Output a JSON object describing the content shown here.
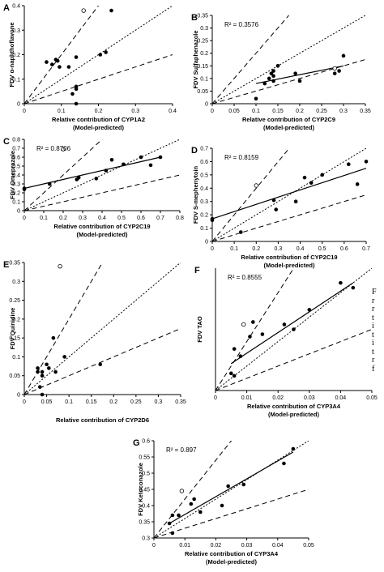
{
  "side_text": [
    "F",
    "r",
    "r",
    "t",
    "i",
    "t",
    "i",
    "t",
    "r",
    "f"
  ],
  "chart_data": [
    {
      "type": "scatter",
      "panel": "A",
      "ylabel": "FDV α-naphthoflavone",
      "xlabel": "Relative contribution of CYP1A2",
      "xlabel2": "(Model-predicted)",
      "xlim": [
        0,
        0.4
      ],
      "ylim": [
        0,
        0.4
      ],
      "xticks": [
        "0",
        "0.1",
        "0.2",
        "0.3",
        "0.4"
      ],
      "yticks": [
        "0",
        "0.1",
        "0.2",
        "0.3",
        "0.4"
      ],
      "r2": "",
      "points": [
        [
          0.06,
          0.17
        ],
        [
          0.075,
          0.16
        ],
        [
          0.085,
          0.18
        ],
        [
          0.09,
          0.175
        ],
        [
          0.095,
          0.15
        ],
        [
          0.12,
          0.15
        ],
        [
          0.13,
          0.04
        ],
        [
          0.14,
          0.06
        ],
        [
          0.14,
          0.07
        ],
        [
          0.14,
          0.19
        ],
        [
          0.205,
          0.2
        ],
        [
          0.22,
          0.21
        ],
        [
          0.235,
          0.38
        ],
        [
          0.14,
          0.0
        ]
      ],
      "open_points": [
        [
          0.16,
          0.38
        ]
      ],
      "fit": null
    },
    {
      "type": "scatter",
      "panel": "B",
      "ylabel": "FDV Sulfaphenazole",
      "xlabel": "Relative contribution of CYP2C9",
      "xlabel2": "(Model-predicted)",
      "xlim": [
        0,
        0.35
      ],
      "ylim": [
        0,
        0.35
      ],
      "xticks": [
        "0",
        "0.05",
        "0.1",
        "0.15",
        "0.2",
        "0.25",
        "0.3",
        "0.35"
      ],
      "yticks": [
        "0",
        "0.05",
        "0.1",
        "0.15",
        "0.2",
        "0.25",
        "0.3",
        "0.35"
      ],
      "r2": "R² = 0.3576",
      "points": [
        [
          0.1,
          0.02
        ],
        [
          0.12,
          0.08
        ],
        [
          0.13,
          0.1
        ],
        [
          0.135,
          0.12
        ],
        [
          0.14,
          0.09
        ],
        [
          0.14,
          0.11
        ],
        [
          0.14,
          0.13
        ],
        [
          0.15,
          0.15
        ],
        [
          0.19,
          0.12
        ],
        [
          0.2,
          0.09
        ],
        [
          0.28,
          0.12
        ],
        [
          0.3,
          0.19
        ],
        [
          0.29,
          0.13
        ]
      ],
      "open_points": [
        [
          0.28,
          0.14
        ]
      ],
      "fit": [
        [
          0.1,
          0.08
        ],
        [
          0.3,
          0.15
        ]
      ]
    },
    {
      "type": "scatter",
      "panel": "C",
      "ylabel": "FDV Omeprazole",
      "xlabel": "Relative contribution of CYP2C19",
      "xlabel2": "(Model-predicted)",
      "xlim": [
        0,
        0.8
      ],
      "ylim": [
        0,
        0.8
      ],
      "xticks": [
        "0",
        "0.1",
        "0.2",
        "0.3",
        "0.4",
        "0.5",
        "0.6",
        "0.7",
        "0.8"
      ],
      "yticks": [
        "0",
        "0.1",
        "0.2",
        "0.3",
        "0.4",
        "0.5",
        "0.6",
        "0.7",
        "0.8"
      ],
      "r2": "R² = 0.8706",
      "points": [
        [
          0.0,
          0.25
        ],
        [
          0.0,
          0.24
        ],
        [
          0.13,
          0.3
        ],
        [
          0.27,
          0.35
        ],
        [
          0.28,
          0.37
        ],
        [
          0.37,
          0.36
        ],
        [
          0.42,
          0.45
        ],
        [
          0.45,
          0.57
        ],
        [
          0.51,
          0.52
        ],
        [
          0.6,
          0.6
        ],
        [
          0.65,
          0.51
        ],
        [
          0.7,
          0.6
        ]
      ],
      "open_points": [
        [
          0.2,
          0.69
        ]
      ],
      "fit": [
        [
          0,
          0.25
        ],
        [
          0.7,
          0.6
        ]
      ]
    },
    {
      "type": "scatter",
      "panel": "D",
      "ylabel": "FDV S-mephenytoin",
      "xlabel": "Relative contribution of CYP2C19",
      "xlabel2": "(Model-predicted)",
      "xlim": [
        0,
        0.7
      ],
      "ylim": [
        0,
        0.7
      ],
      "xticks": [
        "0",
        "0.1",
        "0.2",
        "0.3",
        "0.4",
        "0.5",
        "0.6",
        "0.7"
      ],
      "yticks": [
        "0",
        "0.1",
        "0.2",
        "0.3",
        "0.4",
        "0.5",
        "0.6",
        "0.7"
      ],
      "r2": "R² = 0.8159",
      "points": [
        [
          0.0,
          0.16
        ],
        [
          0.0,
          0.17
        ],
        [
          0.13,
          0.07
        ],
        [
          0.28,
          0.31
        ],
        [
          0.29,
          0.24
        ],
        [
          0.38,
          0.3
        ],
        [
          0.42,
          0.48
        ],
        [
          0.45,
          0.44
        ],
        [
          0.5,
          0.5
        ],
        [
          0.62,
          0.58
        ],
        [
          0.66,
          0.43
        ],
        [
          0.7,
          0.6
        ]
      ],
      "open_points": [
        [
          0.2,
          0.42
        ]
      ],
      "fit": [
        [
          0,
          0.17
        ],
        [
          0.7,
          0.55
        ]
      ]
    },
    {
      "type": "scatter",
      "panel": "E",
      "ylabel": "FDV Quinidine",
      "xlabel": "Relative contribution of CYP2D6",
      "xlabel2": "",
      "xlim": [
        0,
        0.35
      ],
      "ylim": [
        0,
        0.35
      ],
      "xticks": [
        "0",
        "0.05",
        "0.1",
        "0.15",
        "0.2",
        "0.25",
        "0.3",
        "0.35"
      ],
      "yticks": [
        "0",
        "0.05",
        "0.1",
        "0.15",
        "0.2",
        "0.25",
        "0.3",
        "0.35"
      ],
      "r2": "",
      "points": [
        [
          0.03,
          0.06
        ],
        [
          0.03,
          0.07
        ],
        [
          0.035,
          0.02
        ],
        [
          0.04,
          0.05
        ],
        [
          0.04,
          0.06
        ],
        [
          0.05,
          0.08
        ],
        [
          0.055,
          0.07
        ],
        [
          0.065,
          0.15
        ],
        [
          0.07,
          0.06
        ],
        [
          0.09,
          0.1
        ],
        [
          0.17,
          0.08
        ],
        [
          0.04,
          0.0
        ]
      ],
      "open_points": [
        [
          0.08,
          0.34
        ]
      ],
      "fit": null
    },
    {
      "type": "scatter",
      "panel": "F",
      "ylabel": "FDV TAO",
      "xlabel": "Relative contribution of CYP3A4",
      "xlabel2": "(Model-predicted)",
      "xlim": [
        0,
        0.05
      ],
      "ylim": [
        -0.1,
        0.4
      ],
      "xticks": [
        "0",
        "0.01",
        "0.02",
        "0.03",
        "0.04",
        "0.05"
      ],
      "yticks": [],
      "r2": "R² = 0.8555",
      "points": [
        [
          0.005,
          -0.03
        ],
        [
          0.006,
          -0.04
        ],
        [
          0.006,
          0.07
        ],
        [
          0.008,
          0.04
        ],
        [
          0.011,
          0.12
        ],
        [
          0.012,
          0.18
        ],
        [
          0.015,
          0.13
        ],
        [
          0.022,
          0.17
        ],
        [
          0.025,
          0.15
        ],
        [
          0.03,
          0.23
        ],
        [
          0.04,
          0.34
        ],
        [
          0.044,
          0.32
        ]
      ],
      "open_points": [
        [
          0.009,
          0.17
        ]
      ],
      "fit": [
        [
          0.005,
          0.01
        ],
        [
          0.044,
          0.34
        ]
      ]
    },
    {
      "type": "scatter",
      "panel": "G",
      "ylabel": "FDV Ketoconazole",
      "xlabel": "Relative contribution of CYP3A4",
      "xlabel2": "(Model-predicted)",
      "xlim": [
        0,
        0.05
      ],
      "ylim": [
        0.3,
        0.6
      ],
      "xticks": [
        "0",
        "0.01",
        "0.02",
        "0.03",
        "0.04",
        "0.05"
      ],
      "yticks": [
        "0.3",
        "0.35",
        "0.4",
        "0.45",
        "0.5",
        "0.55",
        "0.6"
      ],
      "r2": "R² = 0.897",
      "points": [
        [
          0.005,
          0.345
        ],
        [
          0.006,
          0.37
        ],
        [
          0.006,
          0.315
        ],
        [
          0.008,
          0.37
        ],
        [
          0.012,
          0.405
        ],
        [
          0.013,
          0.42
        ],
        [
          0.015,
          0.38
        ],
        [
          0.022,
          0.4
        ],
        [
          0.024,
          0.46
        ],
        [
          0.029,
          0.465
        ],
        [
          0.042,
          0.53
        ],
        [
          0.045,
          0.575
        ]
      ],
      "open_points": [
        [
          0.009,
          0.445
        ]
      ],
      "fit": [
        [
          0.005,
          0.345
        ],
        [
          0.045,
          0.565
        ]
      ]
    }
  ]
}
